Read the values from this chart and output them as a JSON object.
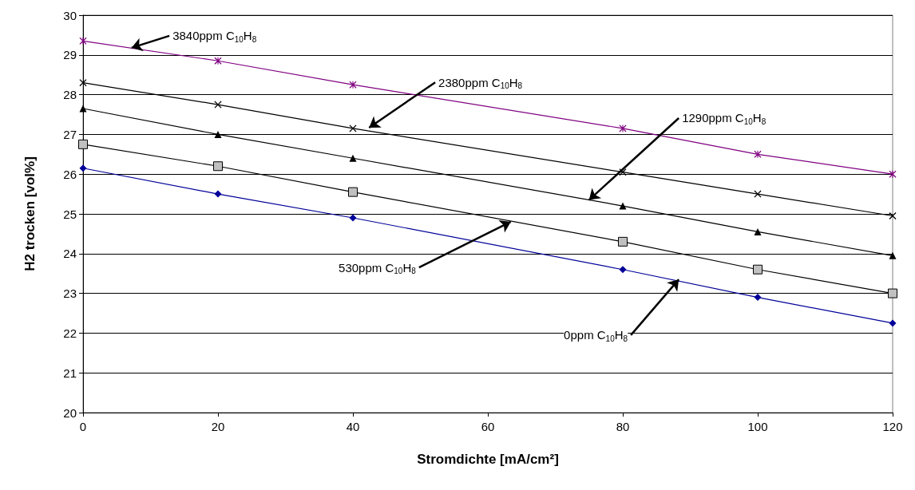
{
  "chart_data": {
    "type": "line",
    "xlabel": "Stromdichte [mA/cm²]",
    "ylabel": "H2 trocken [vol%]",
    "x": [
      0,
      20,
      40,
      80,
      100,
      120
    ],
    "series": [
      {
        "color": "#000099",
        "marker": "diamond",
        "values": [
          26.15,
          25.5,
          24.9,
          23.6,
          22.9,
          22.25
        ]
      },
      {
        "color": "#000000",
        "marker": "square",
        "values": [
          26.75,
          26.2,
          25.55,
          24.3,
          23.6,
          23.0
        ]
      },
      {
        "color": "#000000",
        "marker": "triangle",
        "values": [
          27.65,
          27.0,
          26.4,
          25.2,
          24.55,
          23.95
        ]
      },
      {
        "color": "#000000",
        "marker": "cross",
        "values": [
          28.3,
          27.75,
          27.15,
          26.05,
          25.5,
          24.95
        ]
      },
      {
        "color": "#800080",
        "marker": "star",
        "values": [
          29.35,
          28.85,
          28.25,
          27.15,
          26.5,
          26.0
        ]
      }
    ],
    "annotations": [
      {
        "text": "3840ppm C$_{10}$H$_{8}$",
        "x": 7.2,
        "y": 29.18
      },
      {
        "text": "2380ppm C$_{10}$H$_{8}$",
        "x": 42.4,
        "y": 27.17
      },
      {
        "text": "1290ppm C$_{10}$H$_{8}$",
        "x": 75,
        "y": 25.35
      },
      {
        "text": "530ppm C$_{10}$H$_{8}$",
        "x": 63.4,
        "y": 24.8
      },
      {
        "text": "0ppm C$_{10}$H$_{8}$",
        "x": 88.3,
        "y": 23.35
      }
    ],
    "xlim": [
      0,
      120
    ],
    "xticks": [
      0,
      20,
      40,
      60,
      80,
      100,
      120
    ],
    "ylim": [
      20,
      30
    ],
    "yticks": [
      20,
      21,
      22,
      23,
      24,
      25,
      26,
      27,
      28,
      29,
      30
    ],
    "grid": "y",
    "line_style": "solid"
  }
}
